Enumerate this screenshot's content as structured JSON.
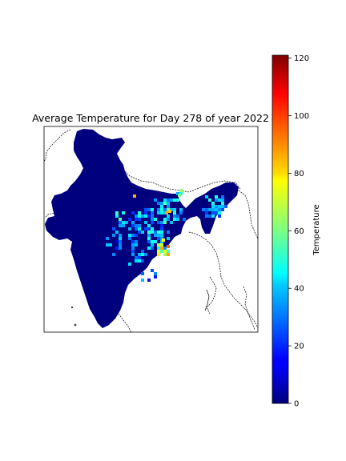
{
  "chart_data": {
    "type": "heatmap",
    "title": "Average Temperature for Day 278 of year 2022",
    "colorbar": {
      "label": "Temperature",
      "colormap": "jet",
      "range": [
        0,
        121
      ],
      "ticks": [
        "0",
        "20",
        "40",
        "60",
        "80",
        "100",
        "120"
      ]
    },
    "description_values": {
      "min": 0,
      "max": 121,
      "background_value": 0
    }
  }
}
